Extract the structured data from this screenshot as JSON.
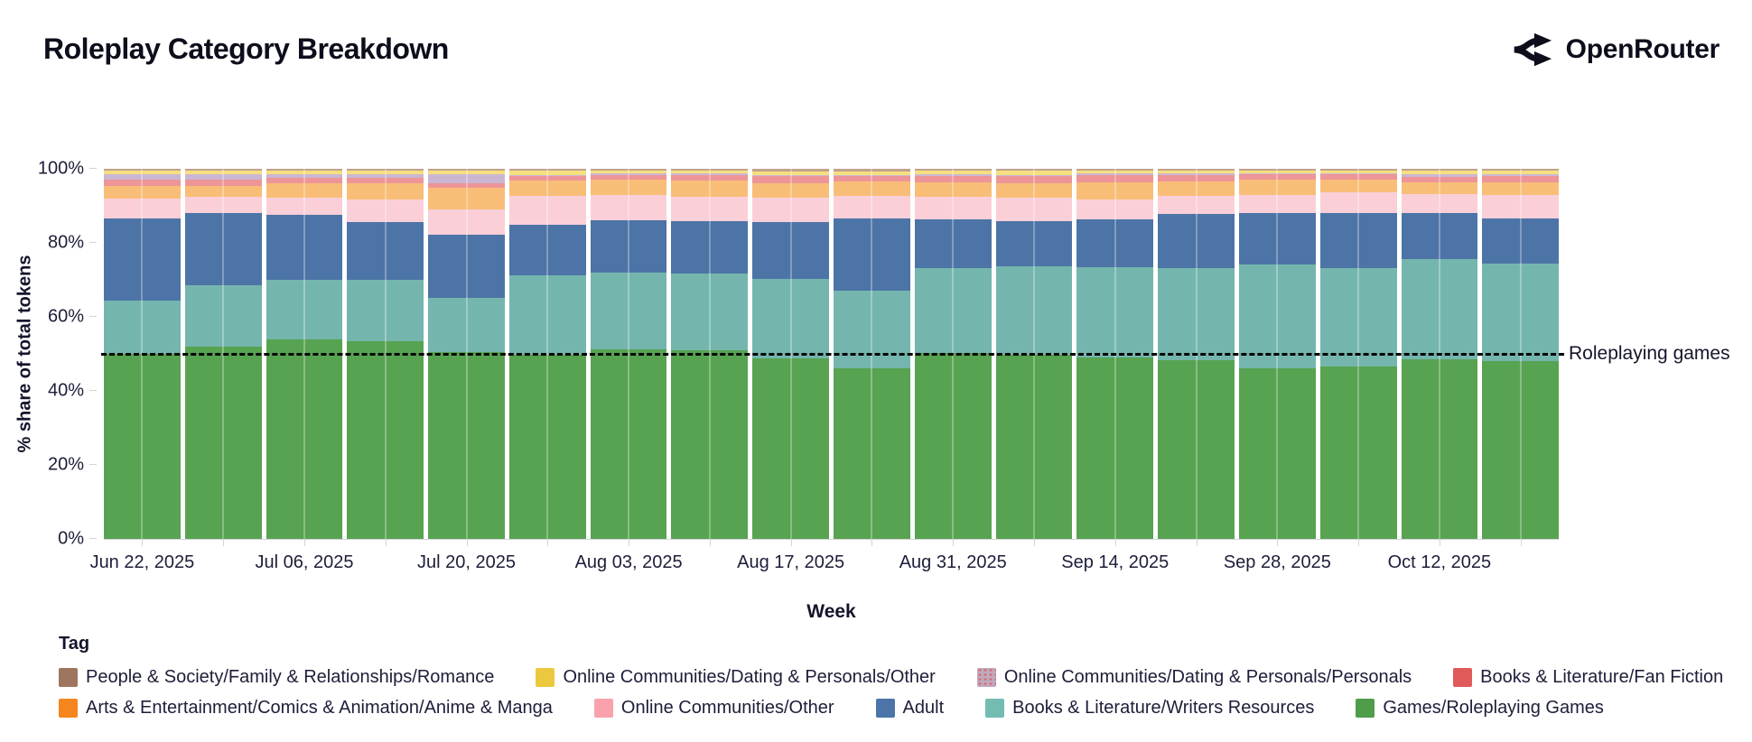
{
  "header": {
    "title": "Roleplay Category Breakdown",
    "brand": "OpenRouter"
  },
  "chart_data": {
    "type": "bar",
    "stacked": true,
    "title": "Roleplay Category Breakdown",
    "xlabel": "Week",
    "ylabel": "% share of total tokens",
    "ylim": [
      0,
      100
    ],
    "y_ticks": [
      "0%",
      "20%",
      "40%",
      "60%",
      "80%",
      "100%"
    ],
    "bars_count": 18,
    "x_tick_labels": [
      "Jun 22, 2025",
      "Jul 06, 2025",
      "Jul 20, 2025",
      "Aug 03, 2025",
      "Aug 17, 2025",
      "Aug 31, 2025",
      "Sep 14, 2025",
      "Sep 28, 2025",
      "Oct 12, 2025"
    ],
    "labeled_bar_indices": [
      0,
      2,
      4,
      6,
      8,
      10,
      12,
      14,
      16
    ],
    "legend_title": "Tag",
    "annotation": {
      "text": "Roleplaying games",
      "y": 50
    },
    "grid": false,
    "legend_position": "bottom",
    "series": [
      {
        "name": "Games/Roleplaying Games",
        "color": "#4f9d4b",
        "band_color": "#57a351",
        "values": [
          50.0,
          52.0,
          54.0,
          53.5,
          50.5,
          49.8,
          51.3,
          51.1,
          48.9,
          46.0,
          50.2,
          49.8,
          49.0,
          48.2,
          46.0,
          46.6,
          48.6,
          48.0
        ]
      },
      {
        "name": "Books & Literature/Writers Resources",
        "color": "#74bcb2",
        "band_color": "#74b6ae",
        "values": [
          14.5,
          16.5,
          16.0,
          16.5,
          14.6,
          21.4,
          20.7,
          20.7,
          21.3,
          21.2,
          23.0,
          23.9,
          24.5,
          24.9,
          28.2,
          26.5,
          27.0,
          26.5
        ]
      },
      {
        "name": "Adult",
        "color": "#4c74a8",
        "band_color": "#4d74a6",
        "values": [
          22.0,
          19.5,
          17.5,
          15.5,
          17.1,
          13.8,
          14.0,
          14.1,
          15.5,
          19.5,
          13.2,
          12.2,
          12.8,
          14.6,
          13.8,
          14.9,
          12.4,
          12.2
        ]
      },
      {
        "name": "Online Communities/Other",
        "color": "#f9a2ac",
        "band_color": "#fbcfd8",
        "values": [
          5.5,
          4.4,
          4.7,
          6.3,
          6.9,
          7.8,
          6.9,
          6.5,
          6.4,
          5.9,
          6.0,
          6.2,
          5.5,
          4.9,
          4.9,
          5.6,
          5.2,
          6.2
        ]
      },
      {
        "name": "Arts & Entertainment/Comics & Animation/Anime & Manga",
        "color": "#f5861f",
        "band_color": "#f8be78",
        "values": [
          3.4,
          3.1,
          4.0,
          4.2,
          5.7,
          4.0,
          4.1,
          4.5,
          4.1,
          4.1,
          4.0,
          4.1,
          4.6,
          4.0,
          4.1,
          3.6,
          3.2,
          3.5
        ]
      },
      {
        "name": "Books & Literature/Fan Fiction",
        "color": "#e05a5a",
        "band_color": "#ee9598",
        "values": [
          1.7,
          1.5,
          1.3,
          1.5,
          1.2,
          1.2,
          1.4,
          1.4,
          1.8,
          1.3,
          1.7,
          1.8,
          1.9,
          1.7,
          1.5,
          1.4,
          1.5,
          1.6
        ]
      },
      {
        "name": "Online Communities/Dating & Personals/Personals",
        "color": "#bfa9bc",
        "band_color": "#cab6d2",
        "pattern": "dots",
        "values": [
          1.4,
          1.5,
          1.0,
          1.0,
          2.6,
          0.4,
          0.4,
          0.4,
          0.4,
          0.4,
          0.4,
          0.4,
          0.4,
          0.4,
          0.3,
          0.3,
          0.6,
          0.5
        ]
      },
      {
        "name": "Online Communities/Dating & Personals/Other",
        "color": "#ecc83f",
        "band_color": "#f6df7f",
        "values": [
          1.0,
          1.0,
          1.0,
          1.0,
          1.0,
          1.1,
          0.7,
          0.8,
          1.0,
          1.0,
          1.1,
          1.1,
          0.8,
          0.8,
          0.8,
          0.7,
          1.0,
          1.0
        ]
      },
      {
        "name": "People & Society/Family & Relationships/Romance",
        "color": "#9e7660",
        "band_color": "#c2a28d",
        "values": [
          0.5,
          0.5,
          0.5,
          0.5,
          0.4,
          0.5,
          0.5,
          0.5,
          0.6,
          0.6,
          0.4,
          0.5,
          0.5,
          0.5,
          0.4,
          0.4,
          0.5,
          0.5
        ]
      }
    ],
    "legend_rows": [
      [
        8,
        7,
        6,
        5
      ],
      [
        4,
        3,
        2,
        1,
        0
      ]
    ]
  }
}
